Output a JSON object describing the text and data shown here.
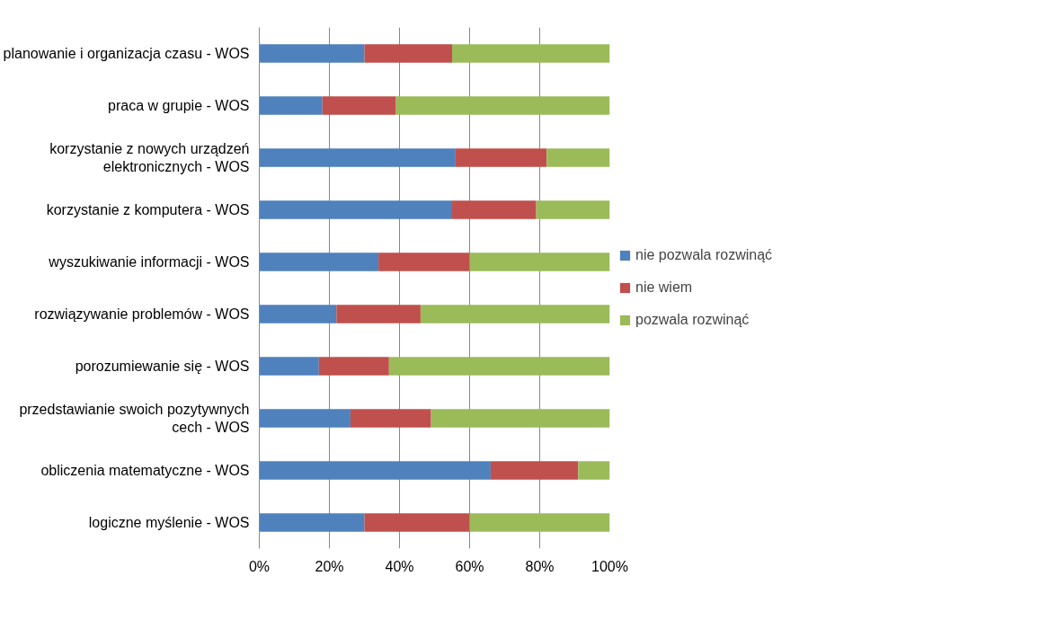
{
  "chart_data": {
    "type": "bar",
    "orientation": "horizontal",
    "stacked": true,
    "categories": [
      "planowanie i organizacja czasu - WOS",
      "praca w grupie - WOS",
      "korzystanie z nowych urządzeń elektronicznych - WOS",
      "korzystanie z komputera - WOS",
      "wyszukiwanie informacji - WOS",
      "rozwiązywanie problemów - WOS",
      "porozumiewanie się - WOS",
      "przedstawianie swoich pozytywnych cech - WOS",
      "obliczenia matematyczne - WOS",
      "logiczne myślenie - WOS"
    ],
    "series": [
      {
        "name": "nie pozwala rozwinąć",
        "color": "#4f81bd",
        "values": [
          30,
          18,
          56,
          55,
          34,
          22,
          17,
          26,
          66,
          30
        ]
      },
      {
        "name": "nie wiem",
        "color": "#c0504d",
        "values": [
          25,
          21,
          26,
          24,
          26,
          24,
          20,
          23,
          25,
          30
        ]
      },
      {
        "name": "pozwala rozwinąć",
        "color": "#9bbb59",
        "values": [
          45,
          61,
          18,
          21,
          40,
          54,
          63,
          51,
          9,
          40
        ]
      }
    ],
    "xlim": [
      0,
      100
    ],
    "xticks": [
      {
        "value": 0,
        "label": "0%"
      },
      {
        "value": 20,
        "label": "20%"
      },
      {
        "value": 40,
        "label": "40%"
      },
      {
        "value": 60,
        "label": "60%"
      },
      {
        "value": 80,
        "label": "80%"
      },
      {
        "value": 100,
        "label": "100%"
      }
    ],
    "grid": "x",
    "legend": "right"
  }
}
